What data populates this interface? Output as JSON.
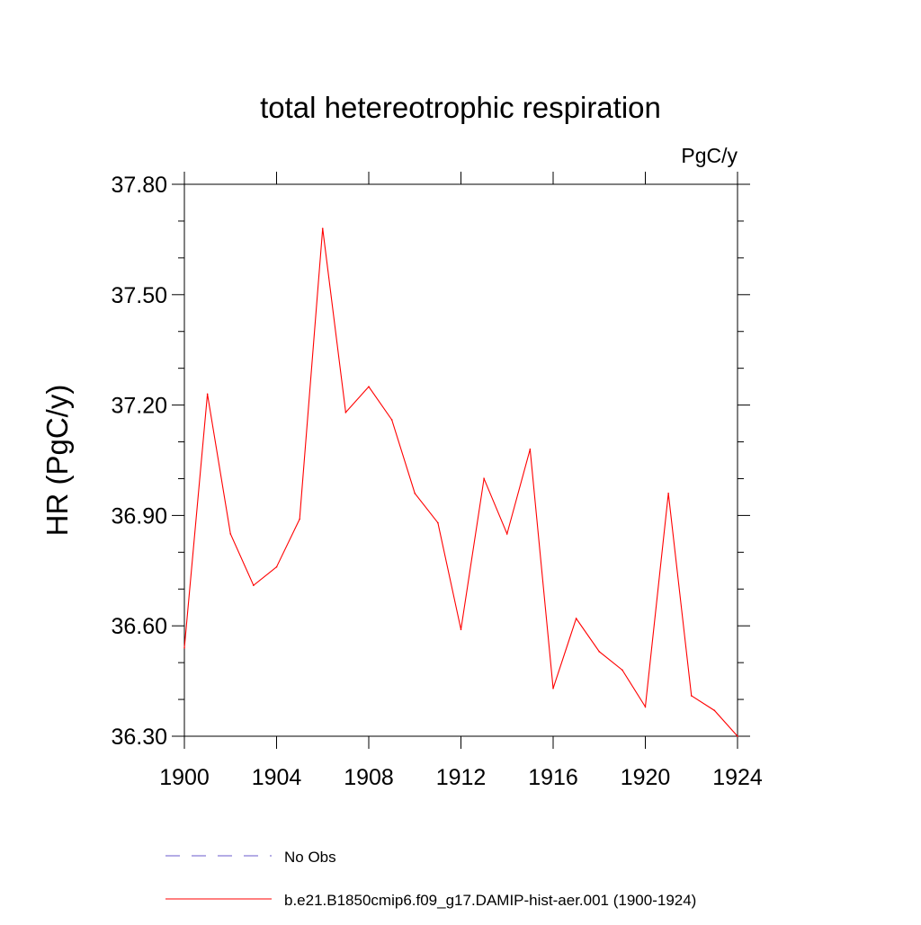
{
  "chart_data": {
    "type": "line",
    "title": "total hetereotrophic respiration",
    "units_label": "PgC/y",
    "xlabel": "",
    "ylabel": "HR  (PgC/y)",
    "xlim": [
      1900,
      1924
    ],
    "ylim": [
      36.3,
      37.8
    ],
    "xticks": [
      1900,
      1904,
      1908,
      1912,
      1916,
      1920,
      1924
    ],
    "xtick_labels": [
      "1900",
      "1904",
      "1908",
      "1912",
      "1916",
      "1920",
      "1924"
    ],
    "yticks": [
      36.3,
      36.6,
      36.9,
      37.2,
      37.5,
      37.8
    ],
    "ytick_labels": [
      "36.30",
      "36.60",
      "36.90",
      "37.20",
      "37.50",
      "37.80"
    ],
    "grid": false,
    "legend_placement": "bottom",
    "x": [
      1900,
      1901,
      1902,
      1903,
      1904,
      1905,
      1906,
      1907,
      1908,
      1909,
      1910,
      1911,
      1912,
      1913,
      1914,
      1915,
      1916,
      1917,
      1918,
      1919,
      1920,
      1921,
      1922,
      1923,
      1924
    ],
    "series": [
      {
        "name": "b.e21.B1850cmip6.f09_g17.DAMIP-hist-aer.001 (1900-1924)",
        "color": "#ff0000",
        "style": "solid",
        "values": [
          36.54,
          37.23,
          36.85,
          36.71,
          36.76,
          36.89,
          37.68,
          37.18,
          37.25,
          37.16,
          36.96,
          36.88,
          36.59,
          37.0,
          36.85,
          37.08,
          36.43,
          36.62,
          36.53,
          36.48,
          36.38,
          36.96,
          36.41,
          36.37,
          36.3
        ]
      }
    ],
    "legend": [
      {
        "label": "No Obs",
        "color": "#6a5acd",
        "style": "dashed"
      },
      {
        "label": "b.e21.B1850cmip6.f09_g17.DAMIP-hist-aer.001 (1900-1924)",
        "color": "#ff0000",
        "style": "solid"
      }
    ]
  }
}
